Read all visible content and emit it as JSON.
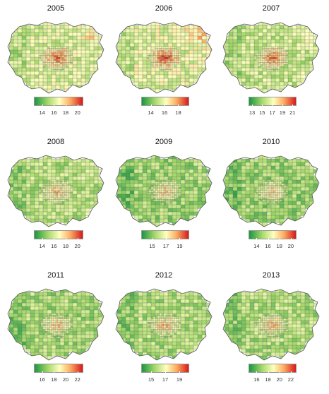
{
  "panels": [
    {
      "year": "2005",
      "ticks": [
        "14",
        "16",
        "18",
        "20"
      ],
      "min": 12.6,
      "max": 21.0,
      "center_heat": 0.78,
      "ne_heat": 0.62,
      "base": 0.42
    },
    {
      "year": "2006",
      "ticks": [
        "14",
        "16",
        "18"
      ],
      "min": 12.6,
      "max": 19.6,
      "center_heat": 0.85,
      "ne_heat": 0.72,
      "base": 0.45
    },
    {
      "year": "2007",
      "ticks": [
        "13",
        "15",
        "17",
        "19",
        "21"
      ],
      "min": 12.3,
      "max": 21.8,
      "center_heat": 0.9,
      "ne_heat": 0.45,
      "base": 0.38
    },
    {
      "year": "2008",
      "ticks": [
        "14",
        "16",
        "18",
        "20"
      ],
      "min": 12.6,
      "max": 21.0,
      "center_heat": 0.62,
      "ne_heat": 0.38,
      "base": 0.34
    },
    {
      "year": "2009",
      "ticks": [
        "15",
        "17",
        "19"
      ],
      "min": 13.4,
      "max": 20.4,
      "center_heat": 0.7,
      "ne_heat": 0.32,
      "base": 0.28
    },
    {
      "year": "2010",
      "ticks": [
        "14",
        "16",
        "18",
        "20"
      ],
      "min": 12.6,
      "max": 21.0,
      "center_heat": 0.7,
      "ne_heat": 0.3,
      "base": 0.27
    },
    {
      "year": "2011",
      "ticks": [
        "16",
        "18",
        "20",
        "22"
      ],
      "min": 14.6,
      "max": 23.0,
      "center_heat": 0.68,
      "ne_heat": 0.3,
      "base": 0.3
    },
    {
      "year": "2012",
      "ticks": [
        "15",
        "17",
        "19"
      ],
      "min": 13.6,
      "max": 20.4,
      "center_heat": 0.72,
      "ne_heat": 0.3,
      "base": 0.32
    },
    {
      "year": "2013",
      "ticks": [
        "16",
        "18",
        "20",
        "22"
      ],
      "min": 14.6,
      "max": 23.0,
      "center_heat": 0.7,
      "ne_heat": 0.3,
      "base": 0.32
    }
  ],
  "colors": {
    "low": "#1a9641",
    "mid_low": "#a6d96a",
    "mid": "#ffffbf",
    "mid_high": "#fdae61",
    "high": "#d7191c",
    "borders": "#6b6b6b"
  }
}
